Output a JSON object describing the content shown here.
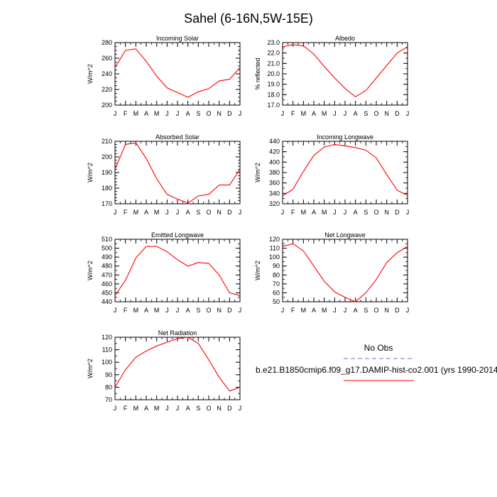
{
  "page": {
    "title": "Sahel (6-16N,5W-15E)"
  },
  "legend": {
    "items": [
      {
        "label": "No Obs",
        "color": "#6f6fe0",
        "dashed": true
      },
      {
        "label": "b.e21.B1850cmip6.f09_g17.DAMIP-hist-co2.001 (yrs 1990-2014)",
        "color": "#ff0000",
        "dashed": false
      }
    ]
  },
  "chart_data": [
    {
      "type": "line",
      "title": "Incoming Solar",
      "xlabel": "",
      "ylabel": "W/m^2",
      "categories": [
        "J",
        "F",
        "M",
        "A",
        "M",
        "J",
        "J",
        "A",
        "S",
        "O",
        "N",
        "D",
        "J"
      ],
      "ylim": [
        200,
        280
      ],
      "yticks": [
        200,
        220,
        240,
        260,
        280
      ],
      "yminor": 5,
      "yfmt": 0,
      "series": [
        {
          "color": "#ff0000",
          "values": [
            248,
            270,
            272,
            256,
            237,
            222,
            216,
            210,
            217,
            221,
            231,
            233,
            248
          ]
        }
      ]
    },
    {
      "type": "line",
      "title": "Albedo",
      "xlabel": "",
      "ylabel": "% reflected",
      "categories": [
        "J",
        "F",
        "M",
        "A",
        "M",
        "J",
        "J",
        "A",
        "S",
        "O",
        "N",
        "D",
        "J"
      ],
      "ylim": [
        17.0,
        23.0
      ],
      "yticks": [
        17.0,
        18.0,
        19.0,
        20.0,
        21.0,
        22.0,
        23.0
      ],
      "yminor": 0.5,
      "yfmt": 1,
      "series": [
        {
          "color": "#ff0000",
          "values": [
            22.6,
            22.8,
            22.7,
            21.9,
            20.7,
            19.6,
            18.6,
            17.8,
            18.4,
            19.6,
            20.8,
            22.0,
            22.6
          ]
        }
      ]
    },
    {
      "type": "line",
      "title": "Absorbed Solar",
      "xlabel": "",
      "ylabel": "W/m^2",
      "categories": [
        "J",
        "F",
        "M",
        "A",
        "M",
        "J",
        "J",
        "A",
        "S",
        "O",
        "N",
        "D",
        "J"
      ],
      "ylim": [
        170,
        210
      ],
      "yticks": [
        170,
        180,
        190,
        200,
        210
      ],
      "yminor": 2,
      "yfmt": 0,
      "series": [
        {
          "color": "#ff0000",
          "values": [
            192,
            208,
            209,
            199,
            186,
            176,
            173,
            170.5,
            175,
            176,
            182,
            182,
            192
          ]
        }
      ]
    },
    {
      "type": "line",
      "title": "Incoming Longwave",
      "xlabel": "",
      "ylabel": "W/m^2",
      "categories": [
        "J",
        "F",
        "M",
        "A",
        "M",
        "J",
        "J",
        "A",
        "S",
        "O",
        "N",
        "D",
        "J"
      ],
      "ylim": [
        320,
        440
      ],
      "yticks": [
        320,
        340,
        360,
        380,
        400,
        420,
        440
      ],
      "yminor": 10,
      "yfmt": 0,
      "series": [
        {
          "color": "#ff0000",
          "values": [
            335,
            348,
            382,
            413,
            429,
            434,
            431,
            428,
            423,
            408,
            376,
            346,
            336
          ]
        }
      ]
    },
    {
      "type": "line",
      "title": "Emitted Longwave",
      "xlabel": "",
      "ylabel": "W/m^2",
      "categories": [
        "J",
        "F",
        "M",
        "A",
        "M",
        "J",
        "J",
        "A",
        "S",
        "O",
        "N",
        "D",
        "J"
      ],
      "ylim": [
        440,
        510
      ],
      "yticks": [
        440,
        450,
        460,
        470,
        480,
        490,
        500,
        510
      ],
      "yminor": 5,
      "yfmt": 0,
      "series": [
        {
          "color": "#ff0000",
          "values": [
            447,
            464,
            489,
            502,
            502,
            496,
            487,
            480,
            484,
            483,
            470,
            450,
            447
          ]
        }
      ]
    },
    {
      "type": "line",
      "title": "Net Longwave",
      "xlabel": "",
      "ylabel": "W/m^2",
      "categories": [
        "J",
        "F",
        "M",
        "A",
        "M",
        "J",
        "J",
        "A",
        "S",
        "O",
        "N",
        "D",
        "J"
      ],
      "ylim": [
        50,
        120
      ],
      "yticks": [
        50,
        60,
        70,
        80,
        90,
        100,
        110,
        120
      ],
      "yminor": 5,
      "yfmt": 0,
      "series": [
        {
          "color": "#ff0000",
          "values": [
            112,
            115,
            107,
            90,
            73,
            61,
            55,
            50,
            60,
            75,
            94,
            105,
            112
          ]
        }
      ]
    },
    {
      "type": "line",
      "title": "Net Radiation",
      "xlabel": "",
      "ylabel": "W/m^2",
      "categories": [
        "J",
        "F",
        "M",
        "A",
        "M",
        "J",
        "J",
        "A",
        "S",
        "O",
        "N",
        "D",
        "J"
      ],
      "ylim": [
        70,
        120
      ],
      "yticks": [
        70,
        80,
        90,
        100,
        110,
        120
      ],
      "yminor": 5,
      "yfmt": 0,
      "series": [
        {
          "color": "#ff0000",
          "values": [
            80,
            94,
            104,
            109,
            113,
            116,
            119,
            120,
            115,
            102,
            88,
            77,
            80
          ]
        }
      ]
    }
  ]
}
